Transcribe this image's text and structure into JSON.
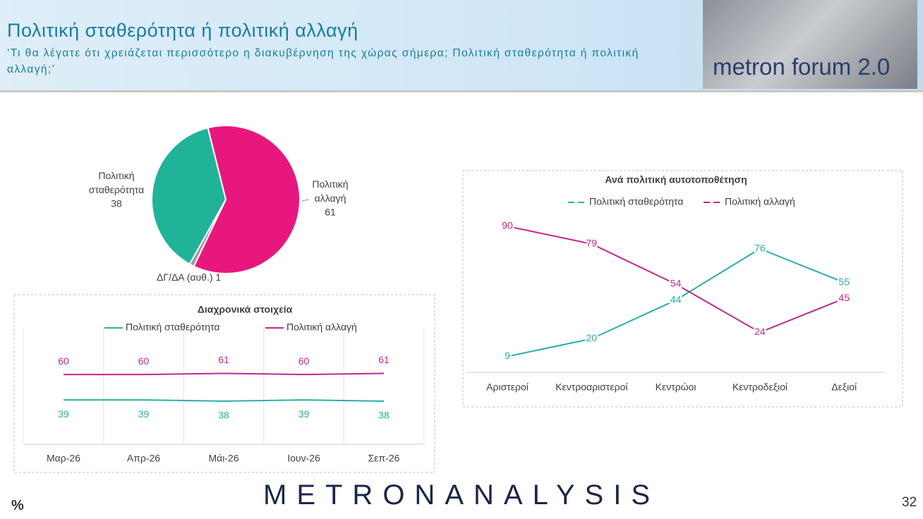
{
  "header": {
    "title": "Πολιτική σταθερότητα ή πολιτική αλλαγή",
    "subtitle": "‘Τι θα λέγατε ότι χρειάζεται περισσότερο η διακυβέρνηση της χώρας σήμερα; Πολιτική σταθερότητα ή πολιτική αλλαγή;’",
    "logo": "metron forum 2.0"
  },
  "chart_data": [
    {
      "type": "pie",
      "categories": [
        "Πολιτική σταθερότητα",
        "Πολιτική αλλαγή",
        "ΔΓ/ΔΑ (αυθ.)"
      ],
      "values": [
        38,
        61,
        1
      ],
      "colors": [
        "#20b39a",
        "#e8177d",
        "#9a9a9a"
      ]
    },
    {
      "type": "line",
      "title": "Διαχρονικά στοιχεία",
      "categories": [
        "Μαρ-26",
        "Απρ-26",
        "Μάι-26",
        "Ιουν-26",
        "Σεπ-26"
      ],
      "series": [
        {
          "name": "Πολιτική σταθερότητα",
          "color": "#2ab0a4",
          "values": [
            39,
            39,
            38,
            39,
            38
          ]
        },
        {
          "name": "Πολιτική αλλαγή",
          "color": "#c0288f",
          "values": [
            60,
            60,
            61,
            60,
            61
          ]
        }
      ]
    },
    {
      "type": "line",
      "title": "Ανά πολιτική αυτοτοποθέτηση",
      "categories": [
        "Αριστεροί",
        "Κεντροαριστεροί",
        "Κεντρώοι",
        "Κεντροδεξιοί",
        "Δεξιοί"
      ],
      "series": [
        {
          "name": "Πολιτική σταθερότητα",
          "color": "#2ab0a4",
          "values": [
            9,
            20,
            44,
            76,
            55
          ]
        },
        {
          "name": "Πολιτική αλλαγή",
          "color": "#c0288f",
          "values": [
            90,
            79,
            54,
            24,
            45
          ]
        }
      ]
    }
  ],
  "footer": {
    "brand": "METRONANALYSIS",
    "unit": "%",
    "page": "32"
  }
}
